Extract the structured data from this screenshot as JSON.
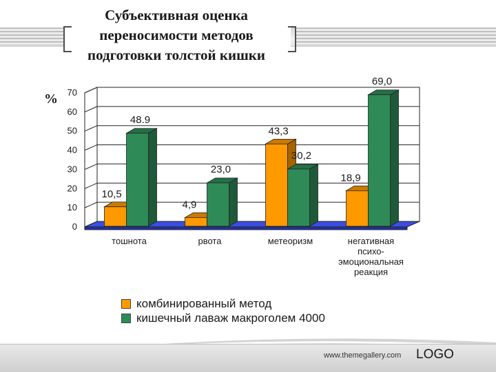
{
  "title_lines": [
    "Субъективная оценка",
    "переносимости методов",
    "подготовки толстой кишки"
  ],
  "chart_data": {
    "type": "bar",
    "ylabel": "%",
    "ylim": [
      0,
      70
    ],
    "yticks": [
      0,
      10,
      20,
      30,
      40,
      50,
      60,
      70
    ],
    "categories": [
      [
        "тошнота"
      ],
      [
        "рвота"
      ],
      [
        "метеоризм"
      ],
      [
        "негативная",
        "психо-",
        "эмоциональная",
        "реакция"
      ]
    ],
    "series": [
      {
        "name": "комбинированный метод",
        "color": "#ff9900",
        "values": [
          10.5,
          4.9,
          43.3,
          18.9
        ],
        "labels": [
          "10,5",
          "4,9",
          "43,3",
          "18,9"
        ]
      },
      {
        "name": "кишечный лаваж макроголем 4000",
        "color": "#2e8b57",
        "values": [
          48.9,
          23.0,
          30.2,
          69.0
        ],
        "labels": [
          "48.9",
          "23,0",
          "30,2",
          "69,0"
        ]
      }
    ],
    "grid": true,
    "legend_position": "bottom"
  },
  "footer": {
    "url": "www.themegallery.com",
    "logo": "LOGO"
  }
}
